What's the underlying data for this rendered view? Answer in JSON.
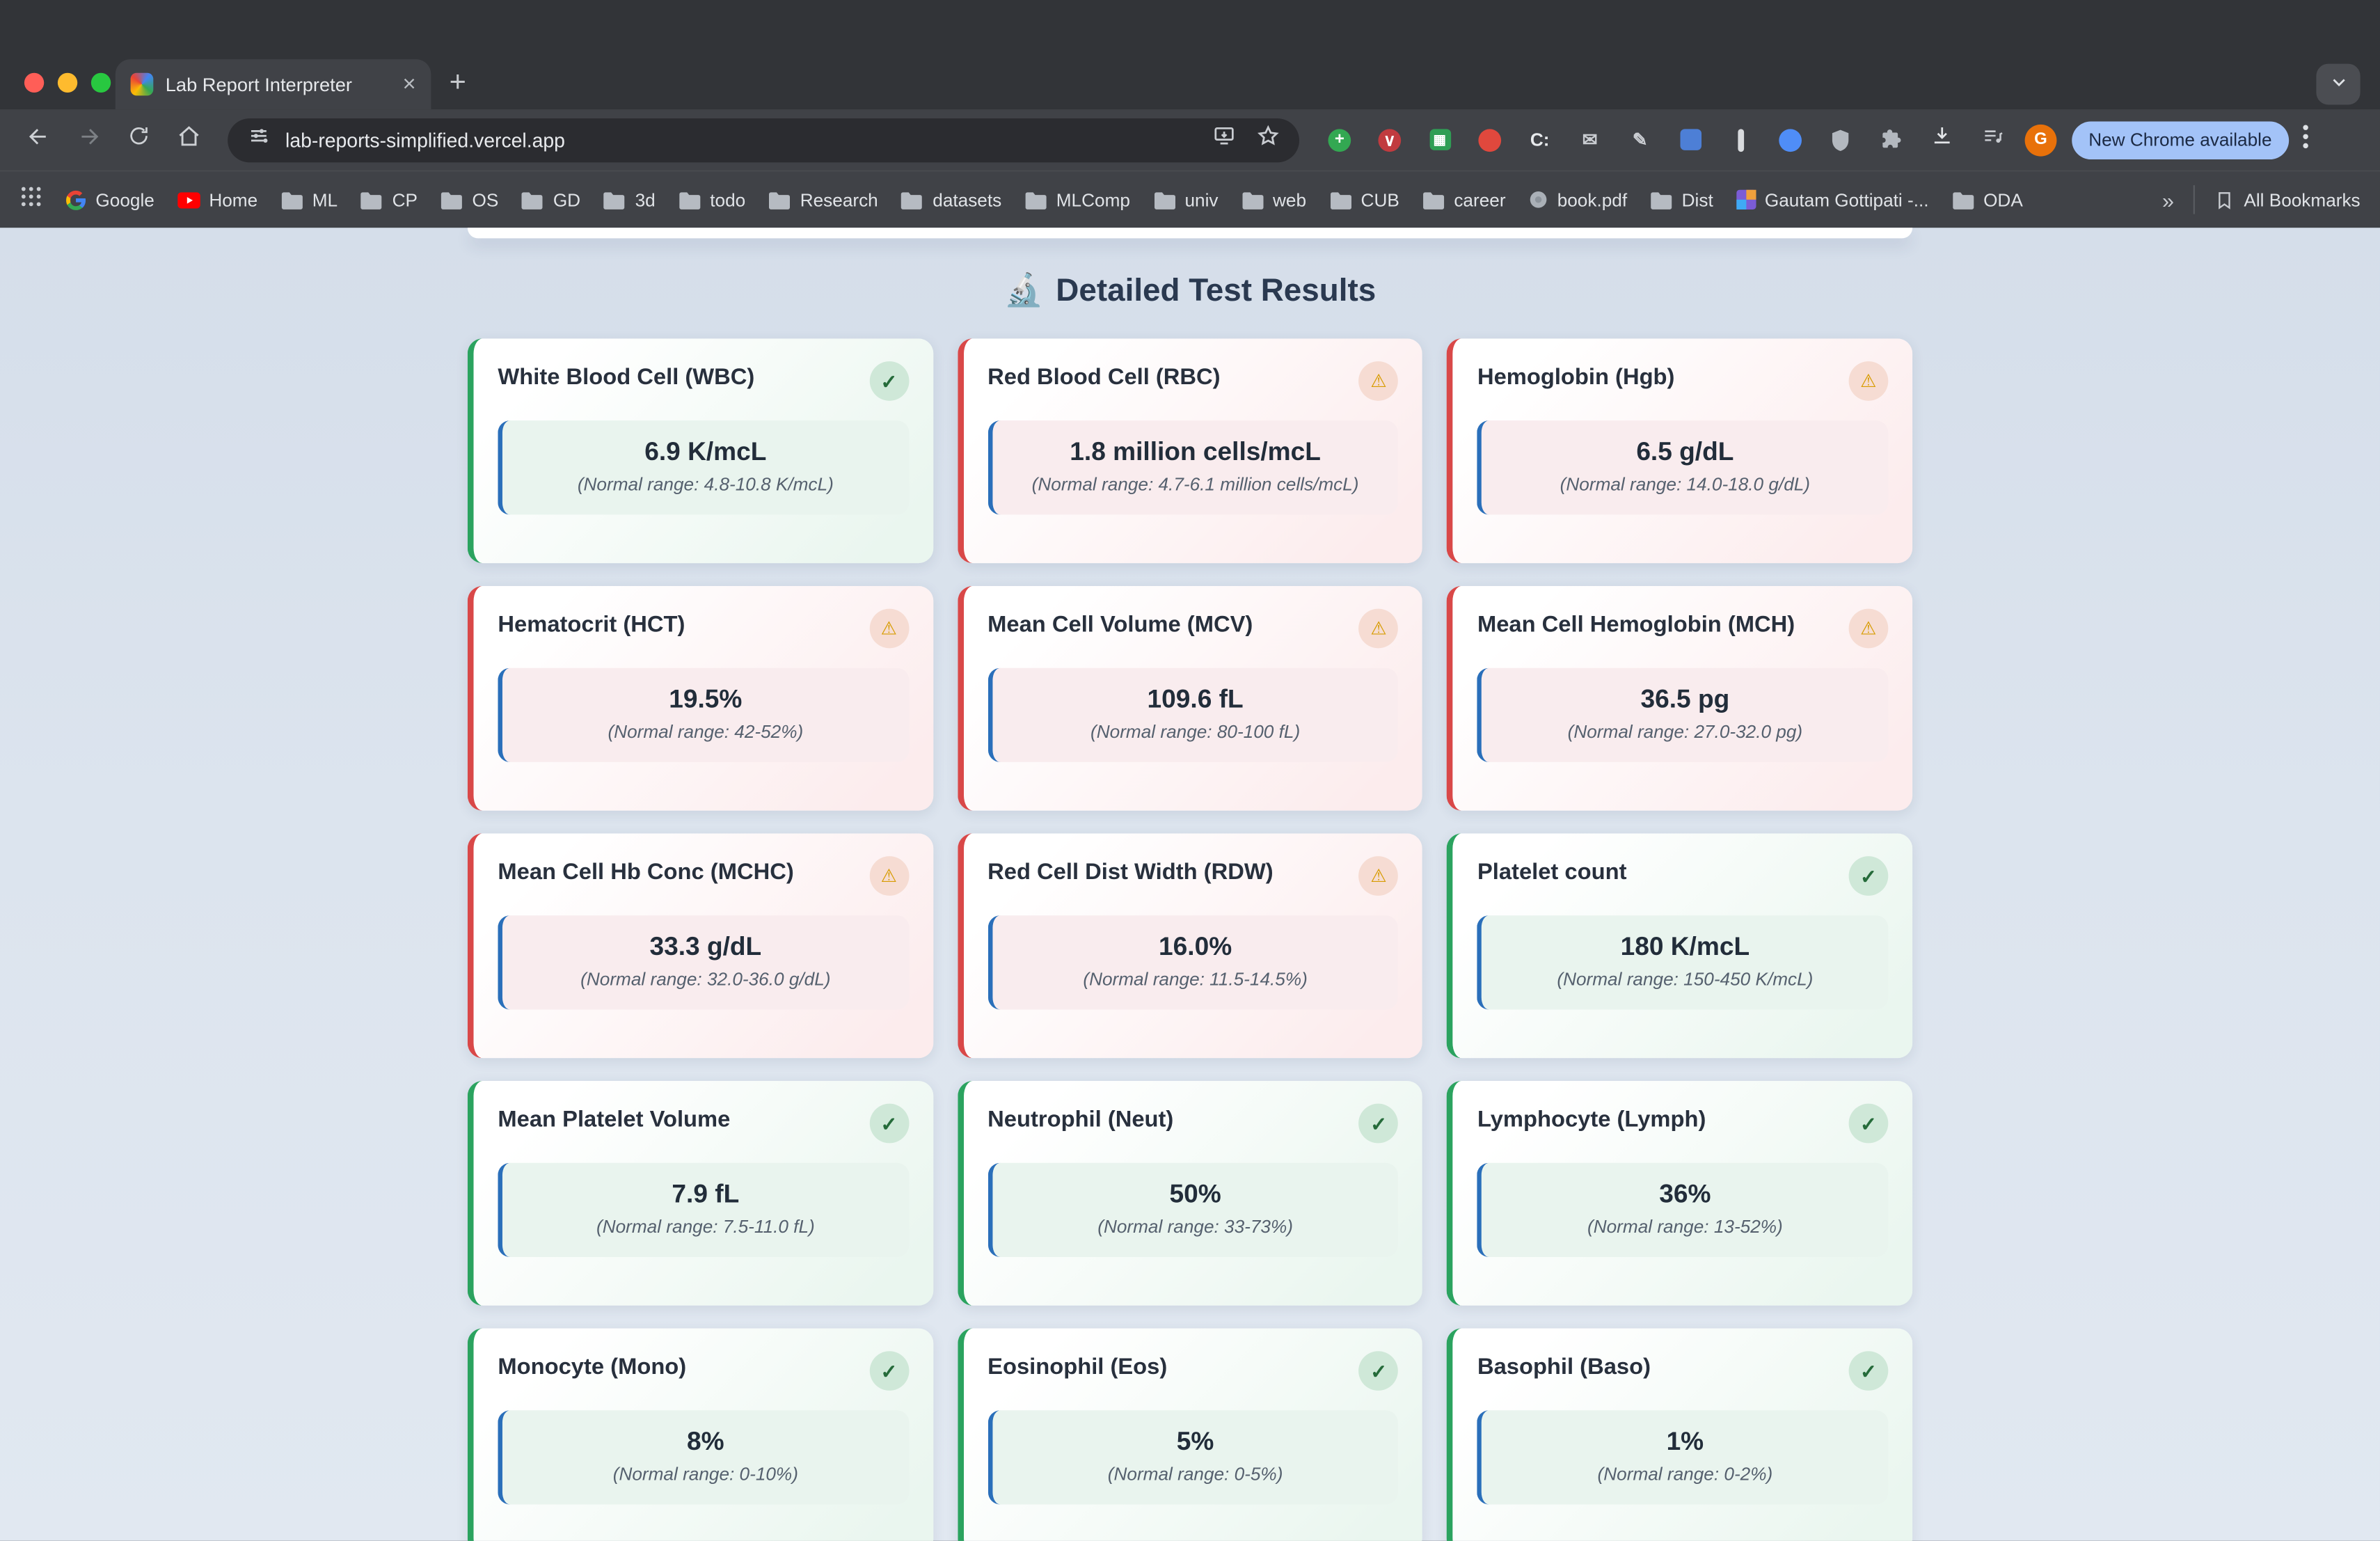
{
  "window": {
    "tab_title": "Lab Report Interpreter",
    "url": "lab-reports-simplified.vercel.app",
    "update_chip": "New Chrome available",
    "profile_initial": "G",
    "new_tab_glyph": "+",
    "tab_close_glyph": "×",
    "overflow_chevrons": "»",
    "all_bookmarks_label": "All Bookmarks",
    "bookmarks": [
      {
        "label": "Google",
        "icon": "google"
      },
      {
        "label": "Home",
        "icon": "youtube"
      },
      {
        "label": "ML",
        "icon": "folder"
      },
      {
        "label": "CP",
        "icon": "folder"
      },
      {
        "label": "OS",
        "icon": "folder"
      },
      {
        "label": "GD",
        "icon": "folder"
      },
      {
        "label": "3d",
        "icon": "folder"
      },
      {
        "label": "todo",
        "icon": "folder"
      },
      {
        "label": "Research",
        "icon": "folder"
      },
      {
        "label": "datasets",
        "icon": "folder"
      },
      {
        "label": "MLComp",
        "icon": "folder"
      },
      {
        "label": "univ",
        "icon": "folder"
      },
      {
        "label": "web",
        "icon": "folder"
      },
      {
        "label": "CUB",
        "icon": "folder"
      },
      {
        "label": "career",
        "icon": "folder"
      },
      {
        "label": "book.pdf",
        "icon": "pdf"
      },
      {
        "label": "Dist",
        "icon": "folder"
      },
      {
        "label": "Gautam Gottipati -...",
        "icon": "avatar"
      },
      {
        "label": "ODA",
        "icon": "folder"
      }
    ],
    "extensions": [
      {
        "name": "add-new-extension-icon",
        "shape": "circle",
        "bg": "#33a852",
        "glyph": "+",
        "fg": "#ffffff"
      },
      {
        "name": "pocket-extension-icon",
        "shape": "circle",
        "bg": "#c13b3f",
        "glyph": "∨",
        "fg": "#ffffff"
      },
      {
        "name": "sheets-extension-icon",
        "shape": "square",
        "bg": "#2f9e55",
        "glyph": "▦",
        "fg": "#ffffff"
      },
      {
        "name": "adblock-extension-icon",
        "shape": "circle",
        "bg": "#e0483d",
        "glyph": "",
        "fg": "#ffffff"
      },
      {
        "name": "c-extension-icon",
        "shape": "text",
        "glyph": "C:",
        "fg": "#e8eaed"
      },
      {
        "name": "mail-extension-icon",
        "shape": "text",
        "glyph": "✉",
        "fg": "#c9ccd1"
      },
      {
        "name": "pen-extension-icon",
        "shape": "text",
        "glyph": "✎",
        "fg": "#c9ccd1"
      },
      {
        "name": "blue-app-extension-icon",
        "shape": "square",
        "bg": "#4d7fd6",
        "glyph": "",
        "fg": "#ffffff"
      },
      {
        "name": "divider-bar-extension-icon",
        "shape": "bar",
        "bg": "#d9dbde"
      },
      {
        "name": "water-drop-extension-icon",
        "shape": "circle",
        "bg": "#4f8df7",
        "glyph": "",
        "fg": "#ffffff"
      },
      {
        "name": "shield-extension-icon",
        "shape": "svg-shield"
      },
      {
        "name": "puzzle-extensions-icon",
        "shape": "svg-puzzle"
      }
    ]
  },
  "page": {
    "heading_icon": "🔬",
    "heading_text": "Detailed Test Results",
    "status_icons": {
      "normal": "✓",
      "abnormal": "⚠"
    },
    "tests": [
      {
        "name": "White Blood Cell (WBC)",
        "value": "6.9 K/mcL",
        "range": "(Normal range: 4.8-10.8 K/mcL)",
        "status": "normal"
      },
      {
        "name": "Red Blood Cell (RBC)",
        "value": "1.8 million cells/mcL",
        "range": "(Normal range: 4.7-6.1 million cells/mcL)",
        "status": "abnormal"
      },
      {
        "name": "Hemoglobin (Hgb)",
        "value": "6.5 g/dL",
        "range": "(Normal range: 14.0-18.0 g/dL)",
        "status": "abnormal"
      },
      {
        "name": "Hematocrit (HCT)",
        "value": "19.5%",
        "range": "(Normal range: 42-52%)",
        "status": "abnormal"
      },
      {
        "name": "Mean Cell Volume (MCV)",
        "value": "109.6 fL",
        "range": "(Normal range: 80-100 fL)",
        "status": "abnormal"
      },
      {
        "name": "Mean Cell Hemoglobin (MCH)",
        "value": "36.5 pg",
        "range": "(Normal range: 27.0-32.0 pg)",
        "status": "abnormal"
      },
      {
        "name": "Mean Cell Hb Conc (MCHC)",
        "value": "33.3 g/dL",
        "range": "(Normal range: 32.0-36.0 g/dL)",
        "status": "abnormal"
      },
      {
        "name": "Red Cell Dist Width (RDW)",
        "value": "16.0%",
        "range": "(Normal range: 11.5-14.5%)",
        "status": "abnormal"
      },
      {
        "name": "Platelet count",
        "value": "180 K/mcL",
        "range": "(Normal range: 150-450 K/mcL)",
        "status": "normal"
      },
      {
        "name": "Mean Platelet Volume",
        "value": "7.9 fL",
        "range": "(Normal range: 7.5-11.0 fL)",
        "status": "normal"
      },
      {
        "name": "Neutrophil (Neut)",
        "value": "50%",
        "range": "(Normal range: 33-73%)",
        "status": "normal"
      },
      {
        "name": "Lymphocyte (Lymph)",
        "value": "36%",
        "range": "(Normal range: 13-52%)",
        "status": "normal"
      },
      {
        "name": "Monocyte (Mono)",
        "value": "8%",
        "range": "(Normal range: 0-10%)",
        "status": "normal"
      },
      {
        "name": "Eosinophil (Eos)",
        "value": "5%",
        "range": "(Normal range: 0-5%)",
        "status": "normal"
      },
      {
        "name": "Basophil (Baso)",
        "value": "1%",
        "range": "(Normal range: 0-2%)",
        "status": "normal"
      }
    ]
  },
  "colors": {
    "normal_accent": "#2ba35f",
    "abnormal_accent": "#d94848",
    "value_box_border": "#2a6fba",
    "chip_bg": "#a3c3f8",
    "traffic_red": "#ff5e57",
    "traffic_yellow": "#febb2e",
    "traffic_green": "#28c840"
  }
}
